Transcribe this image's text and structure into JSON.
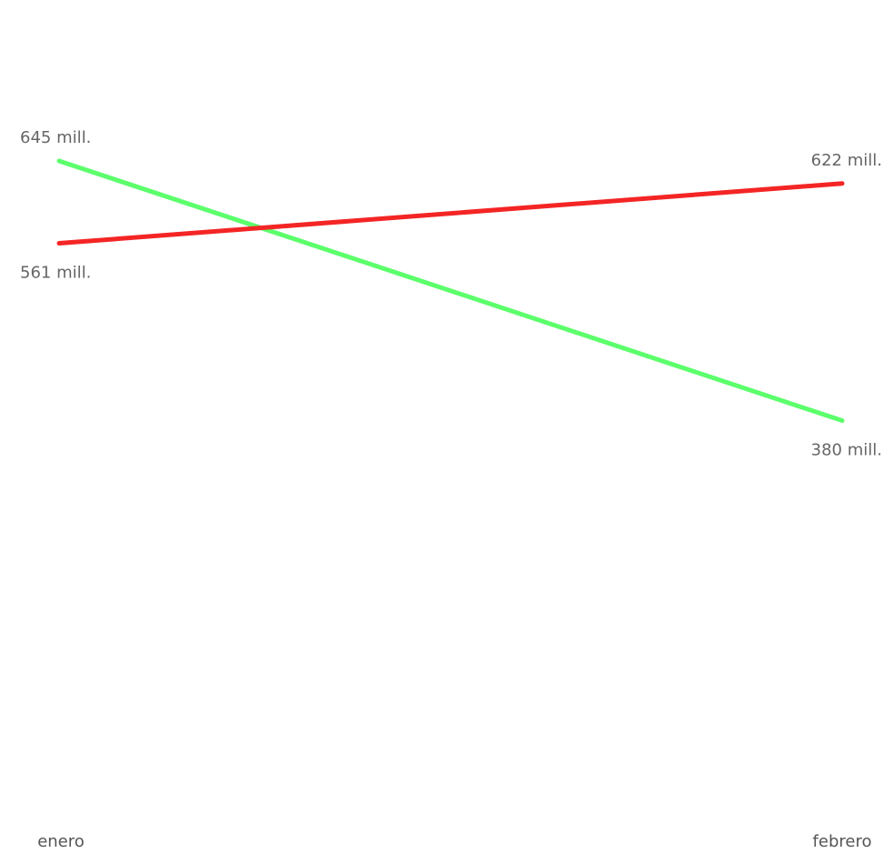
{
  "chart_data": {
    "type": "line",
    "x": [
      "enero",
      "febrero"
    ],
    "ylim": [
      0,
      645
    ],
    "grid": false,
    "legend": "none",
    "series": [
      {
        "color": "#5CFF6B",
        "values": [
          645,
          380
        ],
        "labels": [
          "645 mill.",
          "380 mill."
        ]
      },
      {
        "color": "#F42525",
        "values": [
          561,
          622
        ],
        "labels": [
          "561 mill.",
          "622 mill."
        ]
      }
    ]
  }
}
